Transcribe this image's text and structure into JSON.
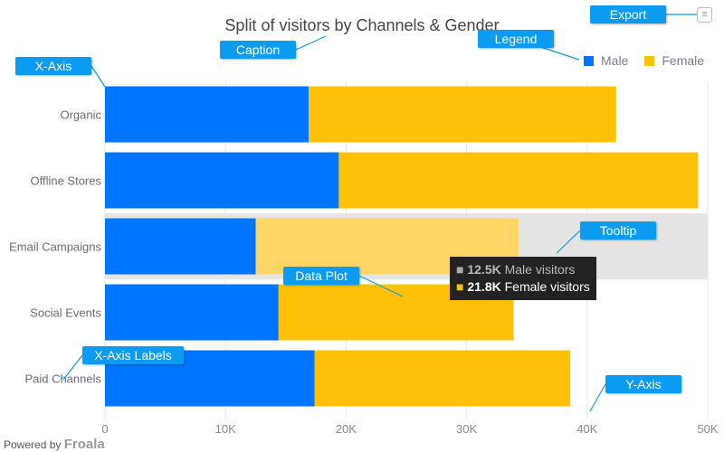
{
  "chart_data": {
    "type": "bar",
    "orientation": "horizontal",
    "stacked": true,
    "title": "Split of visitors by Channels & Gender",
    "categories": [
      "Organic",
      "Offline Stores",
      "Email Campaigns",
      "Social Events",
      "Paid Channels"
    ],
    "series": [
      {
        "name": "Male",
        "color": "#0075ff",
        "values": [
          16.9,
          19.4,
          12.5,
          14.4,
          17.4
        ]
      },
      {
        "name": "Female",
        "color": "#ffc107",
        "values": [
          25.5,
          29.8,
          21.8,
          19.5,
          21.2
        ]
      }
    ],
    "unit": "K",
    "xlim": [
      0,
      50
    ],
    "ticks": [
      "0",
      "10K",
      "20K",
      "30K",
      "40K",
      "50K"
    ],
    "highlighted_category": "Email Campaigns",
    "legend_position": "top-right"
  },
  "tooltip": {
    "male_value": "12.5K",
    "male_label": "Male visitors",
    "female_value": "21.8K",
    "female_label": "Female visitors"
  },
  "callouts": {
    "export": "Export",
    "caption": "Caption",
    "legend": "Legend",
    "xaxis": "X-Axis",
    "tooltip": "Tooltip",
    "dataplot": "Data Plot",
    "xaxis_labels": "X-Axis Labels",
    "yaxis": "Y-Axis"
  },
  "footer": {
    "powered": "Powered by",
    "brand": "Froala"
  },
  "export_icon": "hamburger-menu-icon"
}
